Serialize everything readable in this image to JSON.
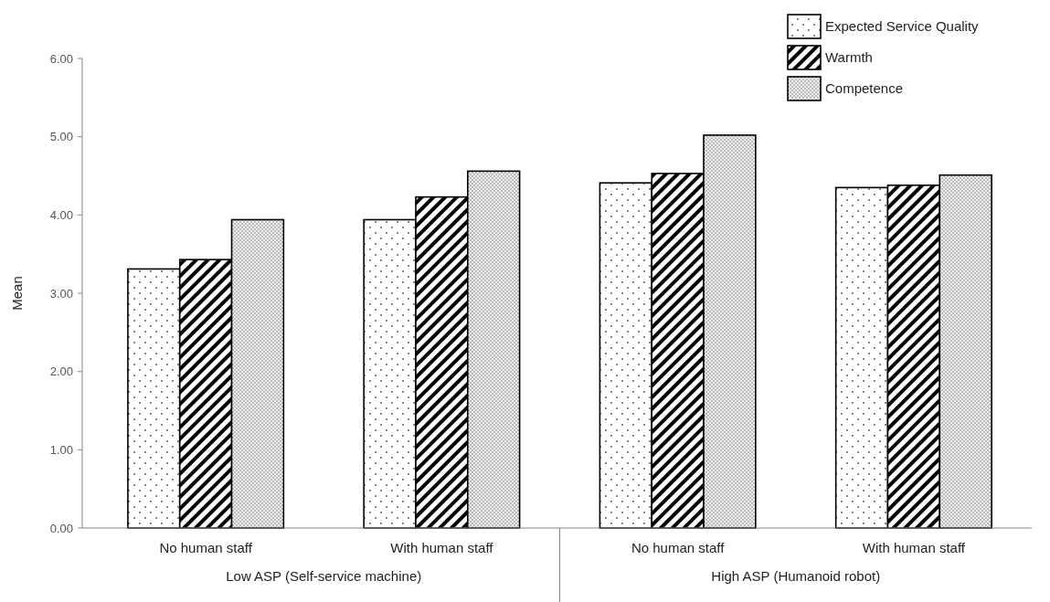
{
  "chart_data": {
    "type": "bar",
    "ylabel": "Mean",
    "categories": [
      "No human staff",
      "With human staff",
      "No human staff",
      "With human staff"
    ],
    "annotations": [
      "Low ASP (Self-service machine)",
      "High ASP (Humanoid robot)"
    ],
    "series": [
      {
        "name": "Expected Service Quality",
        "color": "#000000",
        "values": [
          3.31,
          3.94,
          4.41,
          4.35
        ]
      },
      {
        "name": "Warmth",
        "color": "#000000",
        "values": [
          3.43,
          4.23,
          4.53,
          4.38
        ]
      },
      {
        "name": "Competence",
        "color": "#000000",
        "values": [
          3.94,
          4.56,
          5.02,
          4.51
        ]
      }
    ],
    "ylim": [
      0,
      6
    ],
    "yticks": [
      {
        "value": 0,
        "label": "0.00"
      },
      {
        "value": 1,
        "label": "1.00"
      },
      {
        "value": 2,
        "label": "2.00"
      },
      {
        "value": 3,
        "label": "3.00"
      },
      {
        "value": 4,
        "label": "4.00"
      },
      {
        "value": 5,
        "label": "5.00"
      },
      {
        "value": 6,
        "label": "6.00"
      }
    ],
    "grid": false,
    "legend": "top right"
  }
}
